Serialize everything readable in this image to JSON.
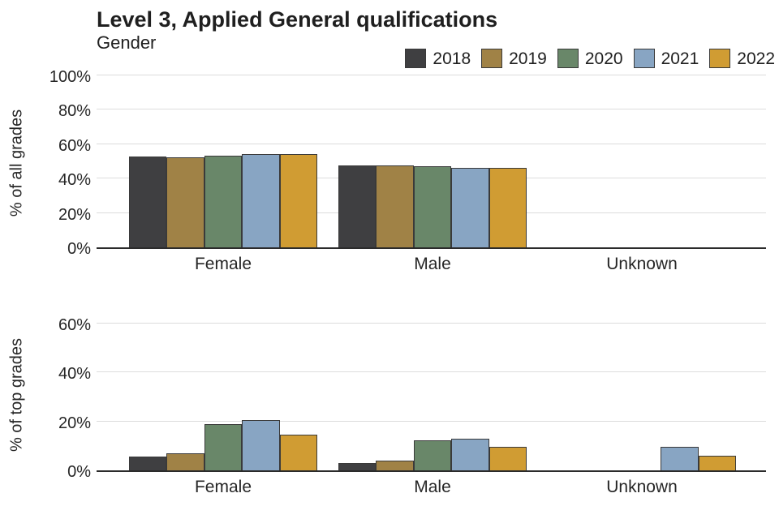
{
  "title": "Level 3, Applied General qualifications",
  "subtitle": "Gender",
  "legend": {
    "items": [
      {
        "label": "2018",
        "color": "#3f3f41"
      },
      {
        "label": "2019",
        "color": "#a08246"
      },
      {
        "label": "2020",
        "color": "#698769"
      },
      {
        "label": "2021",
        "color": "#88a5c3"
      },
      {
        "label": "2022",
        "color": "#d09c33"
      }
    ],
    "position": "top-right"
  },
  "colors": {
    "bar_border": "#3a3a3a",
    "grid": "#dcdcdc",
    "axis": "#2b2b2b",
    "text": "#262626"
  },
  "chart_data": [
    {
      "type": "bar",
      "ylabel": "% of all grades",
      "categories": [
        "Female",
        "Male",
        "Unknown"
      ],
      "series": [
        {
          "name": "2018",
          "color": "#3f3f41",
          "values": [
            52.8,
            47.7,
            0
          ]
        },
        {
          "name": "2019",
          "color": "#a08246",
          "values": [
            52.6,
            47.7,
            0
          ]
        },
        {
          "name": "2020",
          "color": "#698769",
          "values": [
            53.4,
            47.1,
            0
          ]
        },
        {
          "name": "2021",
          "color": "#88a5c3",
          "values": [
            54.3,
            46.3,
            0
          ]
        },
        {
          "name": "2022",
          "color": "#d09c33",
          "values": [
            54.2,
            46.2,
            0
          ]
        }
      ],
      "ylim": [
        0,
        100
      ],
      "yticks": [
        0,
        20,
        40,
        60,
        80,
        100
      ],
      "ytick_labels": [
        "0%",
        "20%",
        "40%",
        "60%",
        "80%",
        "100%"
      ],
      "grid": true
    },
    {
      "type": "bar",
      "ylabel": "% of top grades",
      "categories": [
        "Female",
        "Male",
        "Unknown"
      ],
      "series": [
        {
          "name": "2018",
          "color": "#3f3f41",
          "values": [
            5.8,
            2.9,
            0
          ]
        },
        {
          "name": "2019",
          "color": "#a08246",
          "values": [
            7.1,
            4.1,
            0
          ]
        },
        {
          "name": "2020",
          "color": "#698769",
          "values": [
            18.9,
            12.2,
            0
          ]
        },
        {
          "name": "2021",
          "color": "#88a5c3",
          "values": [
            20.5,
            12.8,
            9.7
          ]
        },
        {
          "name": "2022",
          "color": "#d09c33",
          "values": [
            14.7,
            9.6,
            6.1
          ]
        }
      ],
      "ylim": [
        0,
        63
      ],
      "yticks": [
        0,
        20,
        40,
        60
      ],
      "ytick_labels": [
        "0%",
        "20%",
        "40%",
        "60%"
      ],
      "grid": true
    }
  ]
}
